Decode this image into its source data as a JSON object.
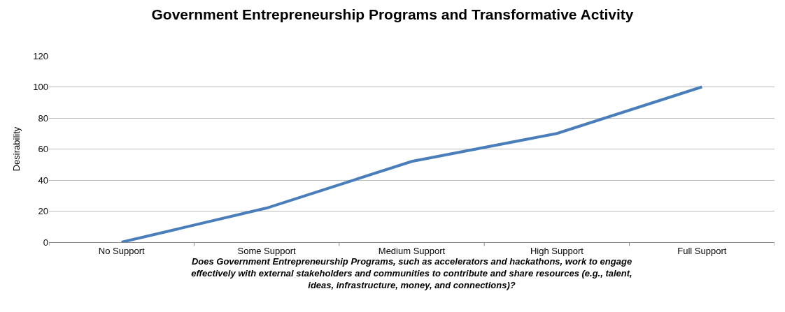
{
  "chart_data": {
    "type": "line",
    "title": "Government Entrepreneurship Programs and Transformative Activity",
    "xlabel": "Does Government Entrepreneurship Programs, such as accelerators and hackathons, work to engage effectively with external stakeholders and communities to contribute and share resources (e.g., talent, ideas, infrastructure, money, and connections)?",
    "ylabel": "Desirability",
    "categories": [
      "No Support",
      "Some Support",
      "Medium Support",
      "High Support",
      "Full Support"
    ],
    "series": [
      {
        "color": "#4a7ebb",
        "values": [
          0,
          22,
          52,
          70,
          100
        ]
      }
    ],
    "ylim": [
      0,
      120
    ],
    "yticks": [
      0,
      20,
      40,
      60,
      80,
      100,
      120
    ],
    "grid": "y",
    "marker": "none",
    "line_style": "solid"
  }
}
